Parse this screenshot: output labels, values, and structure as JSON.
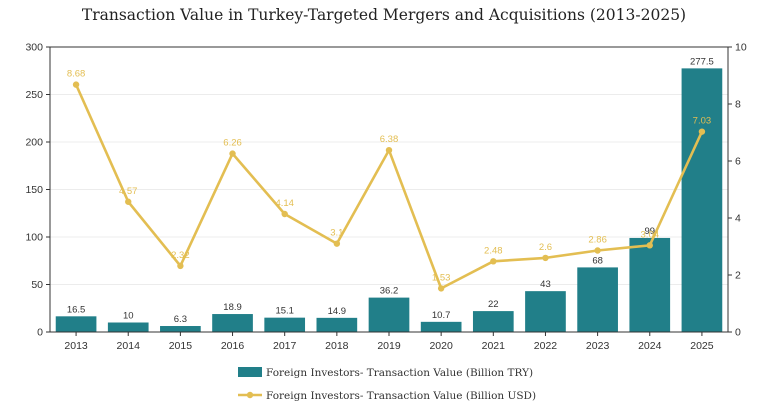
{
  "chart_data": {
    "type": "bar+line",
    "title": "Transaction Value in Turkey-Targeted Mergers and Acquisitions (2013-2025)",
    "categories": [
      "2013",
      "2014",
      "2015",
      "2016",
      "2017",
      "2018",
      "2019",
      "2020",
      "2021",
      "2022",
      "2023",
      "2024",
      "2025"
    ],
    "series": [
      {
        "name": "Foreign Investors- Transaction Value (Billion TRY)",
        "type": "bar",
        "axis": "left",
        "color": "#217f89",
        "values": [
          16.5,
          10,
          6.3,
          18.9,
          15.1,
          14.9,
          36.2,
          10.7,
          22,
          43,
          68,
          99,
          277.5
        ],
        "labels": [
          "16.5",
          "10",
          "6.3",
          "18.9",
          "15.1",
          "14.9",
          "36.2",
          "10.7",
          "22",
          "43",
          "68",
          "99",
          "277.5"
        ]
      },
      {
        "name": "Foreign Investors- Transaction Value (Billion USD)",
        "type": "line",
        "axis": "right",
        "color": "#e3be52",
        "values": [
          8.68,
          4.57,
          2.32,
          6.26,
          4.14,
          3.1,
          6.38,
          1.53,
          2.48,
          2.6,
          2.86,
          3.04,
          7.03
        ],
        "labels": [
          "8.68",
          "4.57",
          "2.32",
          "6.26",
          "4.14",
          "3.1",
          "6.38",
          "1.53",
          "2.48",
          "2.6",
          "2.86",
          "3.04",
          "7.03"
        ]
      }
    ],
    "y_left": {
      "ylim": [
        0,
        300
      ],
      "ticks": [
        "0",
        "50",
        "100",
        "150",
        "200",
        "250",
        "300"
      ]
    },
    "y_right": {
      "ylim": [
        0,
        10
      ],
      "ticks": [
        "0",
        "2",
        "4",
        "6",
        "8",
        "10"
      ]
    },
    "grid": true,
    "legend_placement": "bottom-center"
  }
}
